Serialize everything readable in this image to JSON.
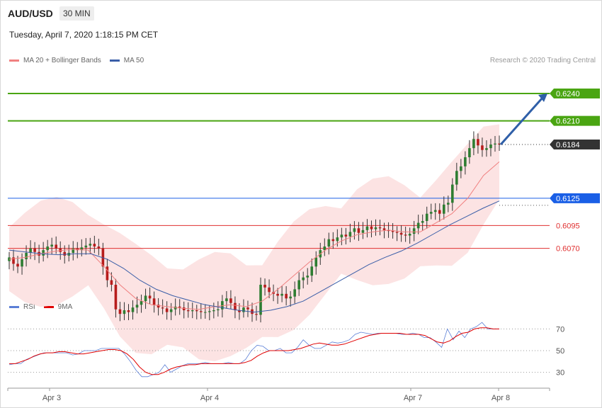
{
  "header": {
    "symbol": "AUD/USD",
    "timeframe": "30 MIN",
    "datetime": "Tuesday, April 7, 2020 1:18:15 PM CET"
  },
  "legend": {
    "ma20_label": "MA 20 + Bollinger Bands",
    "ma50_label": "MA 50",
    "ma20_color": "#f08080",
    "ma50_color": "#3a5ea8"
  },
  "credit": "Research © 2020 Trading Central",
  "rsi_legend": {
    "rsi_label": "RSI",
    "ma9_label": "9MA",
    "rsi_color": "#5b7fd6",
    "ma9_color": "#e00000"
  },
  "chart_data": [
    {
      "type": "candlestick",
      "title": "AUD/USD",
      "x_ticks": [
        "Apr 3",
        "Apr 4",
        "Apr 7",
        "Apr 8"
      ],
      "ylim": [
        0.6016,
        0.6268
      ],
      "current_price": {
        "label": "0.6184",
        "value": 0.6184
      },
      "levels": [
        {
          "label": "0.6240",
          "value": 0.624,
          "color": "#4aa512",
          "kind": "resistance"
        },
        {
          "label": "0.6210",
          "value": 0.621,
          "color": "#4aa512",
          "kind": "resistance"
        },
        {
          "label": "0.6125",
          "value": 0.6125,
          "color": "#1a5fe6",
          "kind": "pivot"
        },
        {
          "label": "0.6095",
          "value": 0.6095,
          "color": "#e03030",
          "kind": "support"
        },
        {
          "label": "0.6070",
          "value": 0.607,
          "color": "#e03030",
          "kind": "support"
        }
      ],
      "bias_arrow": {
        "from": 0.6184,
        "to": 0.624,
        "color": "#2f5fa8"
      },
      "close_series": [
        0.606,
        0.6053,
        0.605,
        0.6058,
        0.6065,
        0.607,
        0.6066,
        0.6062,
        0.6068,
        0.6072,
        0.6074,
        0.607,
        0.6066,
        0.6062,
        0.6065,
        0.607,
        0.6068,
        0.6071,
        0.6073,
        0.6075,
        0.6072,
        0.607,
        0.605,
        0.6035,
        0.603,
        0.6003,
        0.5998,
        0.6002,
        0.6,
        0.6005,
        0.6008,
        0.6012,
        0.6018,
        0.6015,
        0.6008,
        0.6005,
        0.6004,
        0.6,
        0.6003,
        0.6006,
        0.6005,
        0.6002,
        0.6001,
        0.6002,
        0.6001,
        0.6,
        0.6,
        0.6001,
        0.6002,
        0.6003,
        0.6012,
        0.6015,
        0.601,
        0.6002,
        0.6,
        0.6005,
        0.6003,
        0.5998,
        0.5997,
        0.603,
        0.6027,
        0.6022,
        0.602,
        0.6018,
        0.602,
        0.6015,
        0.6017,
        0.6025,
        0.6035,
        0.6038,
        0.604,
        0.605,
        0.606,
        0.6068,
        0.6072,
        0.608,
        0.6078,
        0.6082,
        0.6085,
        0.6083,
        0.6088,
        0.6092,
        0.6087,
        0.609,
        0.6094,
        0.6091,
        0.6093,
        0.6092,
        0.609,
        0.6089,
        0.6088,
        0.6087,
        0.6085,
        0.6084,
        0.6086,
        0.6092,
        0.6098,
        0.61,
        0.6108,
        0.611,
        0.6112,
        0.6108,
        0.6118,
        0.612,
        0.614,
        0.6155,
        0.616,
        0.617,
        0.618,
        0.619,
        0.6183,
        0.6178,
        0.618,
        0.6184,
        0.6185,
        0.6184
      ],
      "ma20_series": [
        0.6058,
        0.606,
        0.6064,
        0.6067,
        0.6069,
        0.6068,
        0.605,
        0.603,
        0.6015,
        0.6008,
        0.6006,
        0.6004,
        0.6003,
        0.6006,
        0.6008,
        0.6006,
        0.6012,
        0.6025,
        0.604,
        0.6055,
        0.6068,
        0.6078,
        0.6085,
        0.6088,
        0.609,
        0.6088,
        0.6088,
        0.6098,
        0.6108,
        0.6125,
        0.615,
        0.6165
      ],
      "ma50_series": [
        0.6068,
        0.6066,
        0.6064,
        0.6063,
        0.6064,
        0.6064,
        0.6058,
        0.6048,
        0.6035,
        0.6025,
        0.6018,
        0.6013,
        0.6008,
        0.6005,
        0.6002,
        0.6,
        0.6002,
        0.6006,
        0.6012,
        0.6022,
        0.6032,
        0.6042,
        0.6052,
        0.606,
        0.6067,
        0.6076,
        0.6086,
        0.6096,
        0.6105,
        0.6114,
        0.6122
      ]
    },
    {
      "type": "line",
      "title": "RSI",
      "y_ticks": [
        "70",
        "50",
        "30"
      ],
      "ylim": [
        18,
        82
      ],
      "series": [
        {
          "name": "RSI",
          "values": [
            37,
            38,
            38,
            42,
            44,
            46,
            48,
            48,
            48,
            48,
            48,
            46,
            47,
            50,
            50,
            50,
            52,
            52,
            52,
            52,
            47,
            40,
            32,
            26,
            26,
            28,
            30,
            37,
            30,
            33,
            36,
            38,
            38,
            38,
            39,
            38,
            38,
            38,
            39,
            38,
            38,
            42,
            50,
            55,
            54,
            50,
            50,
            52,
            48,
            48,
            53,
            60,
            55,
            52,
            52,
            55,
            58,
            57,
            58,
            60,
            65,
            67,
            66,
            65,
            66,
            66,
            66,
            66,
            65,
            65,
            66,
            65,
            62,
            62,
            58,
            53,
            70,
            60,
            68,
            62,
            70,
            72,
            76,
            70,
            70,
            70
          ]
        },
        {
          "name": "9MA",
          "values": [
            38,
            38,
            40,
            42,
            45,
            47,
            48,
            48,
            49,
            49,
            48,
            47,
            47,
            48,
            49,
            50,
            51,
            51,
            50,
            47,
            42,
            35,
            30,
            28,
            28,
            30,
            33,
            35,
            36,
            37,
            37,
            38,
            38,
            38,
            38,
            38,
            38,
            38,
            39,
            41,
            45,
            48,
            50,
            50,
            50,
            50,
            51,
            52,
            54,
            56,
            57,
            56,
            55,
            55,
            56,
            58,
            60,
            62,
            64,
            65,
            66,
            66,
            66,
            66,
            65,
            65,
            65,
            64,
            61,
            58,
            57,
            59,
            63,
            66,
            67,
            70,
            71,
            71,
            70,
            70
          ]
        }
      ]
    }
  ]
}
